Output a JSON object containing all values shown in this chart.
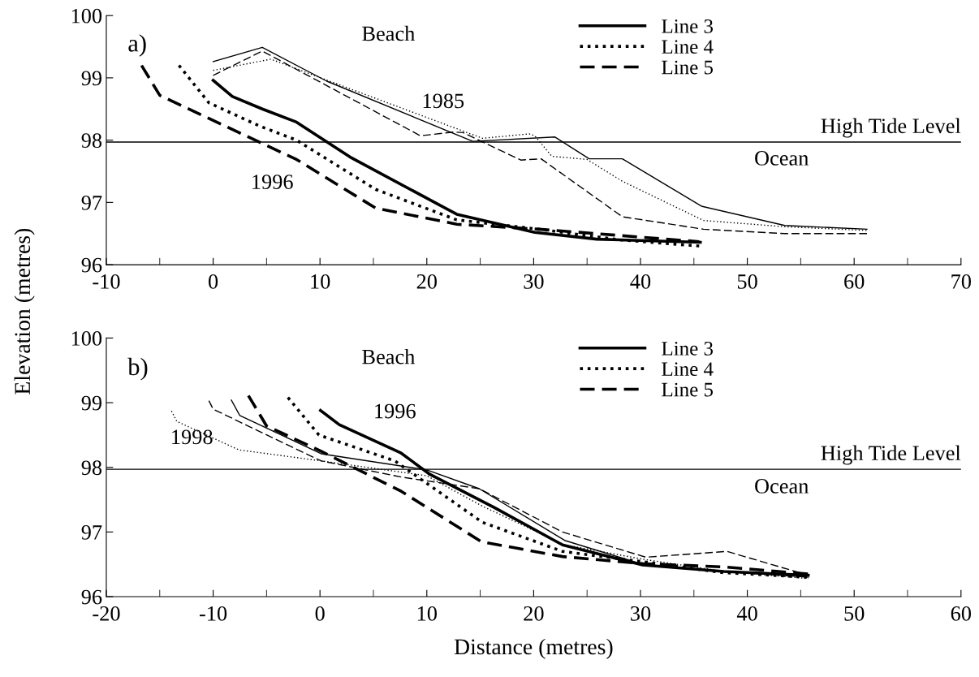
{
  "chart_data": [
    {
      "type": "line",
      "title": "a)",
      "ylabel": "Elevation (metres)",
      "xlim": [
        -10,
        70
      ],
      "xticks": [
        -10,
        {
          "value": -5,
          "label": null
        },
        0,
        {
          "value": 5,
          "label": null
        },
        10,
        {
          "value": 15,
          "label": null
        },
        20,
        {
          "value": 25,
          "label": null
        },
        30,
        {
          "value": 35,
          "label": null
        },
        40,
        {
          "value": 45,
          "label": null
        },
        50,
        {
          "value": 55,
          "label": null
        },
        60,
        {
          "value": 65,
          "label": null
        },
        70
      ],
      "ylim": [
        96,
        100
      ],
      "yticks": [
        96,
        97,
        98,
        99,
        100
      ],
      "grid": false,
      "legend": "top right",
      "ref_lines": [
        {
          "axis": "y",
          "value": 97.97,
          "label": "High Tide Level",
          "color": "#000000"
        }
      ],
      "annotations": [
        "Beach",
        "Ocean",
        "1985",
        "1996"
      ],
      "series": [
        {
          "name": "Line 3",
          "color": "#000000",
          "line_style": "solid",
          "x": [
            0,
            1.8,
            4.6,
            7.8,
            12.8,
            22.8,
            30.1,
            35.9,
            45.6
          ],
          "values": [
            98.96,
            98.7,
            98.5,
            98.29,
            97.73,
            96.81,
            96.52,
            96.41,
            96.36
          ]
        },
        {
          "name": "Line 4",
          "color": "#000000",
          "line_style": "dotted",
          "x": [
            -3.2,
            -0.4,
            4.3,
            7.8,
            15.2,
            22.8,
            30.5,
            38,
            45.5
          ],
          "values": [
            99.2,
            98.6,
            98.23,
            98.0,
            97.21,
            96.72,
            96.57,
            96.4,
            96.3
          ]
        },
        {
          "name": "Line 5",
          "color": "#000000",
          "line_style": "dashed",
          "x": [
            -6.7,
            -5,
            4.3,
            7.8,
            15.2,
            22.8,
            30.5,
            38,
            45.5
          ],
          "values": [
            99.2,
            98.72,
            97.97,
            97.69,
            96.91,
            96.65,
            96.57,
            96.47,
            96.37
          ]
        },
        {
          "color": "#000000",
          "line_style": "solid",
          "x": [
            0,
            4.6,
            10.6,
            24.3,
            32.0,
            35.2,
            38.3,
            45.7,
            53.5,
            61.2
          ],
          "values": [
            99.26,
            99.49,
            98.95,
            97.98,
            98.05,
            97.7,
            97.7,
            96.94,
            96.63,
            96.57
          ]
        },
        {
          "color": "#000000",
          "line_style": "dotted",
          "x": [
            0,
            5.4,
            25.2,
            29.6,
            30.1,
            31.7,
            35.0,
            38.3,
            45.9,
            53.5,
            61.2
          ],
          "values": [
            99.12,
            99.3,
            98.03,
            98.1,
            98.07,
            97.74,
            97.69,
            97.34,
            96.71,
            96.61,
            96.55
          ]
        },
        {
          "color": "#000000",
          "line_style": "dashed",
          "x": [
            0,
            4.6,
            19.4,
            22.5,
            23.4,
            28.8,
            30.7,
            38.3,
            45.9,
            53.5,
            61.2
          ],
          "values": [
            99.04,
            99.43,
            98.07,
            98.13,
            98.12,
            97.68,
            97.7,
            96.77,
            96.57,
            96.5,
            96.5
          ]
        }
      ]
    },
    {
      "type": "line",
      "title": "b)",
      "xlabel": "Distance (metres)",
      "xlim": [
        -20,
        60
      ],
      "xticks": [
        -20,
        {
          "value": -15,
          "label": null
        },
        -10,
        {
          "value": -5,
          "label": null
        },
        0,
        {
          "value": 5,
          "label": null
        },
        10,
        {
          "value": 15,
          "label": null
        },
        20,
        {
          "value": 25,
          "label": null
        },
        30,
        {
          "value": 35,
          "label": null
        },
        40,
        {
          "value": 45,
          "label": null
        },
        50,
        {
          "value": 55,
          "label": null
        },
        60
      ],
      "ylim": [
        96,
        100
      ],
      "yticks": [
        96,
        97,
        98,
        99,
        100
      ],
      "grid": false,
      "legend": "top right",
      "ref_lines": [
        {
          "axis": "y",
          "value": 97.97,
          "label": "High Tide Level",
          "color": "#000000"
        }
      ],
      "annotations": [
        "Beach",
        "Ocean",
        "1996",
        "1998"
      ],
      "series": [
        {
          "name": "Line 3",
          "color": "#000000",
          "line_style": "solid",
          "x": [
            0.05,
            1.8,
            7.6,
            10.3,
            16.3,
            22.7,
            30.2,
            37.8,
            45.7
          ],
          "values": [
            98.88,
            98.66,
            98.22,
            97.89,
            97.38,
            96.8,
            96.49,
            96.39,
            96.33
          ]
        },
        {
          "name": "Line 4",
          "color": "#000000",
          "line_style": "dotted",
          "x": [
            -3.0,
            -0.1,
            7.0,
            15.2,
            22.7,
            30.2,
            37.8,
            45.7
          ],
          "values": [
            99.08,
            98.5,
            98.1,
            97.15,
            96.7,
            96.54,
            96.37,
            96.3
          ]
        },
        {
          "name": "Line 5",
          "color": "#000000",
          "line_style": "dashed",
          "x": [
            -6.7,
            -5.0,
            0.1,
            7.6,
            15.1,
            22.7,
            30.2,
            37.8,
            45.7
          ],
          "values": [
            99.11,
            98.64,
            98.25,
            97.63,
            96.85,
            96.62,
            96.51,
            96.46,
            96.35
          ]
        },
        {
          "color": "#000000",
          "line_style": "solid",
          "x": [
            -8.3,
            -7.5,
            0.1,
            10.0,
            14.9,
            22.9,
            30.2,
            37.8,
            45.7
          ],
          "values": [
            99.04,
            98.8,
            98.21,
            97.96,
            97.67,
            96.87,
            96.5,
            96.39,
            96.3
          ]
        },
        {
          "color": "#000000",
          "line_style": "dotted",
          "x": [
            -13.9,
            -13.4,
            -7.6,
            0.1,
            10.0,
            15.2,
            22.9,
            30.2,
            37.8,
            45.7
          ],
          "values": [
            98.87,
            98.71,
            98.27,
            98.1,
            97.87,
            97.4,
            96.8,
            96.58,
            96.39,
            96.28
          ]
        },
        {
          "color": "#000000",
          "line_style": "dashed",
          "x": [
            -10.4,
            -10.0,
            -2.7,
            0.1,
            7.6,
            14.9,
            22.7,
            30.5,
            38.1,
            44.9,
            45.7
          ],
          "values": [
            99.03,
            98.9,
            98.32,
            98.1,
            97.85,
            97.67,
            97.0,
            96.61,
            96.7,
            96.37,
            96.35
          ]
        }
      ]
    }
  ]
}
